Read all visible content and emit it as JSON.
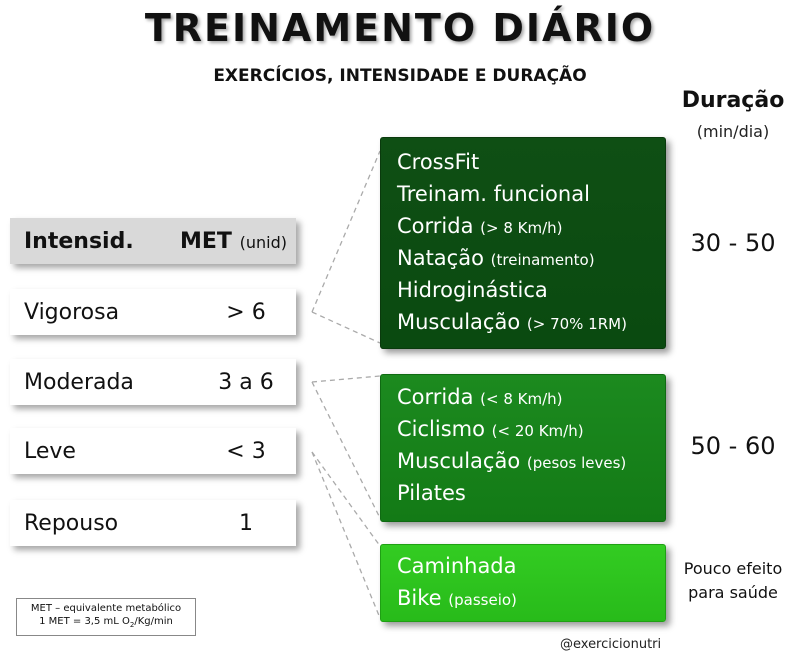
{
  "header": {
    "title": "TREINAMENTO DIÁRIO",
    "subtitle": "EXERCÍCIOS, INTENSIDADE E DURAÇÃO"
  },
  "duration_header": {
    "title": "Duração",
    "unit": "(min/dia)"
  },
  "table": {
    "header": {
      "intensity": "Intensid.",
      "met": "MET",
      "met_unit": "(unid)"
    },
    "rows": [
      {
        "label": "Vigorosa",
        "met": "> 6"
      },
      {
        "label": "Moderada",
        "met": "3 a 6"
      },
      {
        "label": "Leve",
        "met": "< 3"
      },
      {
        "label": "Repouso",
        "met": "1"
      }
    ]
  },
  "groups": [
    {
      "lines": [
        {
          "name": "CrossFit",
          "detail": ""
        },
        {
          "name": "Treinam. funcional",
          "detail": ""
        },
        {
          "name": "Corrida",
          "detail": "(> 8 Km/h)"
        },
        {
          "name": "Natação",
          "detail": "(treinamento)"
        },
        {
          "name": "Hidroginástica",
          "detail": ""
        },
        {
          "name": "Musculação",
          "detail": "(> 70% 1RM)"
        }
      ],
      "duration": "30 - 50",
      "color": "#0d4d12"
    },
    {
      "lines": [
        {
          "name": "Corrida",
          "detail": "(< 8 Km/h)"
        },
        {
          "name": "Ciclismo",
          "detail": "(< 20 Km/h)"
        },
        {
          "name": "Musculação",
          "detail": "(pesos leves)"
        },
        {
          "name": "Pilates",
          "detail": ""
        }
      ],
      "duration": "50 - 60",
      "color": "#168219"
    },
    {
      "lines": [
        {
          "name": "Caminhada",
          "detail": ""
        },
        {
          "name": "Bike",
          "detail": "(passeio)"
        }
      ],
      "note_line1": "Pouco efeito",
      "note_line2": "para saúde",
      "color": "#2ec41e"
    }
  ],
  "legend": {
    "line1": "MET – equivalente metabólico",
    "line2_a": "1 MET = 3,5 mL O",
    "line2_sub": "2",
    "line2_b": "/Kg/min"
  },
  "credit": "@exercicionutri"
}
